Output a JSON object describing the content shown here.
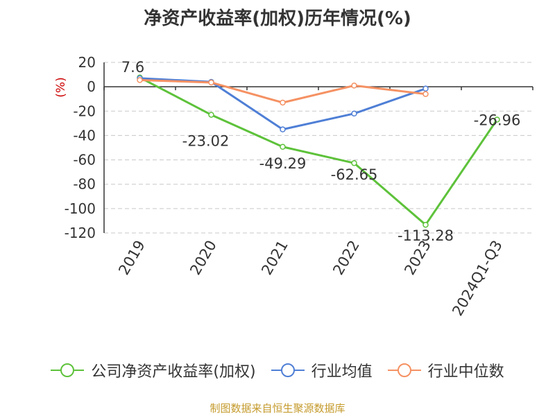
{
  "chart_data": {
    "type": "line",
    "title": "净资产收益率(加权)历年情况(%)",
    "ylabel": "(%)",
    "xlabel": "",
    "categories": [
      "2019",
      "2020",
      "2021",
      "2022",
      "2023",
      "2024Q1-Q3"
    ],
    "yticks": [
      20,
      0,
      -20,
      -40,
      -60,
      -80,
      -100,
      -120
    ],
    "ylim": [
      -120,
      20
    ],
    "grid": true,
    "legend_position": "bottom",
    "series": [
      {
        "name": "公司净资产收益率(加权)",
        "color": "#5dc23a",
        "values": [
          7.6,
          -23.02,
          -49.29,
          -62.65,
          -113.28,
          -26.96
        ],
        "labels": [
          "7.6",
          "-23.02",
          "-49.29",
          "-62.65",
          "-113.28",
          "-26.96"
        ]
      },
      {
        "name": "行业均值",
        "color": "#4f7fd6",
        "values": [
          7.0,
          4.0,
          -35.0,
          -22.0,
          -1.5,
          null
        ]
      },
      {
        "name": "行业中位数",
        "color": "#f59163",
        "values": [
          5.5,
          3.5,
          -13.0,
          1.0,
          -6.0,
          null
        ]
      }
    ]
  },
  "footer": {
    "source": "制图数据来自恒生聚源数据库"
  }
}
